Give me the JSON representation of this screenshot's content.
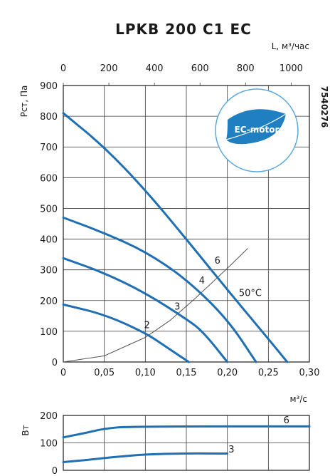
{
  "title": "LPKB 200 C1 EC",
  "code": "7540276",
  "badge": "EC-motor",
  "colors": {
    "curve": "#1f6fb2",
    "system": "#555555",
    "badge_fill": "#1f7fc0",
    "badge_ring": "#5aa9dc",
    "grid": "#3a3a3a"
  },
  "chart_data": [
    {
      "type": "line",
      "title": "LPKB 200 C1 EC",
      "xlabel": "м³/с",
      "ylabel": "Рст, Па",
      "x2label": "L, м³/час",
      "xlim": [
        0,
        0.3
      ],
      "ylim": [
        0,
        900
      ],
      "x2lim": [
        0,
        1080
      ],
      "xticks": [
        "0",
        "0,05",
        "0,10",
        "0,15",
        "0,20",
        "0,25",
        "0,30"
      ],
      "yticks": [
        "0",
        "100",
        "200",
        "300",
        "400",
        "500",
        "600",
        "700",
        "800",
        "900"
      ],
      "x2ticks": [
        "0",
        "200",
        "400",
        "600",
        "800",
        "1000"
      ],
      "grid": true,
      "series": [
        {
          "name": "6",
          "points": [
            [
              0,
              810
            ],
            [
              0.05,
              700
            ],
            [
              0.1,
              560
            ],
            [
              0.15,
              400
            ],
            [
              0.2,
              235
            ],
            [
              0.25,
              75
            ],
            [
              0.273,
              0
            ]
          ]
        },
        {
          "name": "4",
          "points": [
            [
              0,
              470
            ],
            [
              0.05,
              420
            ],
            [
              0.1,
              360
            ],
            [
              0.15,
              270
            ],
            [
              0.2,
              140
            ],
            [
              0.235,
              0
            ]
          ]
        },
        {
          "name": "3",
          "points": [
            [
              0,
              338
            ],
            [
              0.05,
              290
            ],
            [
              0.1,
              225
            ],
            [
              0.15,
              140
            ],
            [
              0.17,
              100
            ],
            [
              0.2,
              0
            ]
          ]
        },
        {
          "name": "2",
          "points": [
            [
              0,
              187
            ],
            [
              0.05,
              155
            ],
            [
              0.1,
              95
            ],
            [
              0.125,
              50
            ],
            [
              0.153,
              0
            ]
          ]
        }
      ],
      "system_curve": {
        "points": [
          [
            0,
            0
          ],
          [
            0.05,
            20
          ],
          [
            0.1,
            80
          ],
          [
            0.13,
            135
          ],
          [
            0.16,
            205
          ],
          [
            0.2,
            305
          ],
          [
            0.225,
            370
          ]
        ]
      },
      "annotations": [
        {
          "text": "6",
          "x": 0.188,
          "y": 320
        },
        {
          "text": "4",
          "x": 0.169,
          "y": 255
        },
        {
          "text": "3",
          "x": 0.139,
          "y": 170
        },
        {
          "text": "2",
          "x": 0.102,
          "y": 110
        },
        {
          "text": "50°C",
          "x": 0.228,
          "y": 215
        }
      ]
    },
    {
      "type": "line",
      "ylabel": "Вт",
      "xlim": [
        0,
        0.3
      ],
      "ylim": [
        0,
        200
      ],
      "yticks": [
        "0",
        "100",
        "200"
      ],
      "grid": true,
      "series": [
        {
          "name": "6",
          "points": [
            [
              0,
              120
            ],
            [
              0.03,
              138
            ],
            [
              0.05,
              152
            ],
            [
              0.08,
              160
            ],
            [
              0.3,
              160
            ]
          ]
        },
        {
          "name": "3",
          "points": [
            [
              0,
              30
            ],
            [
              0.03,
              38
            ],
            [
              0.06,
              48
            ],
            [
              0.1,
              58
            ],
            [
              0.15,
              62
            ],
            [
              0.2,
              61
            ]
          ]
        }
      ],
      "annotations": [
        {
          "text": "6",
          "x": 0.272,
          "y": 172
        },
        {
          "text": "3",
          "x": 0.205,
          "y": 65
        }
      ]
    }
  ]
}
